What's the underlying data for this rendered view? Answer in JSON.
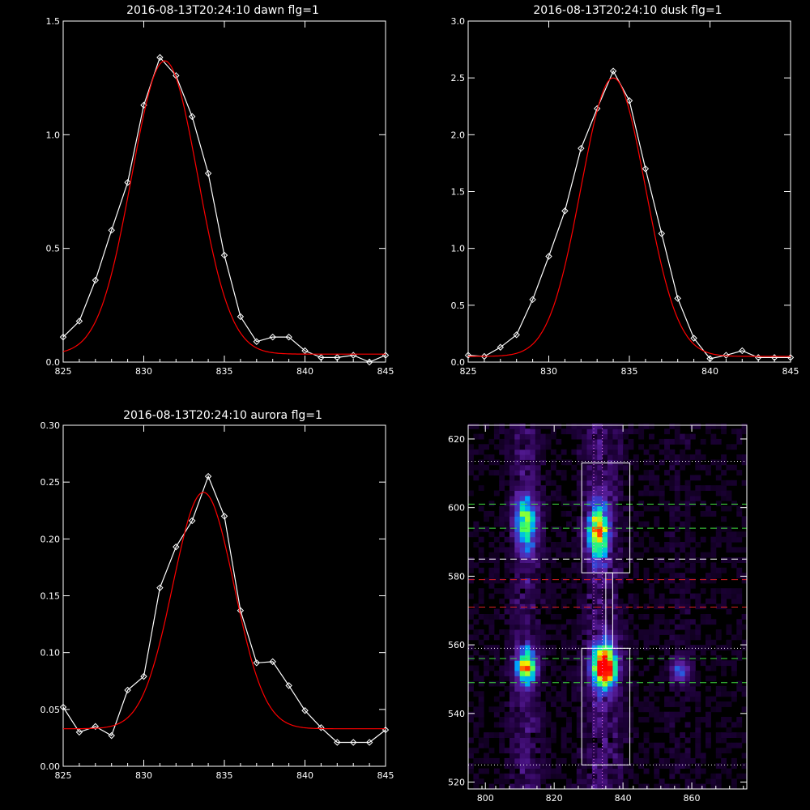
{
  "chart_data": [
    {
      "type": "line",
      "title": "2016-08-13T20:24:10 dawn flg=1",
      "xlabel": "",
      "ylabel": "",
      "xlim": [
        825,
        845
      ],
      "ylim": [
        0,
        1.5
      ],
      "xticks": [
        825,
        830,
        835,
        840,
        845
      ],
      "xtick_labels": [
        "825",
        "830",
        "835",
        "840",
        "845"
      ],
      "yticks": [
        0,
        0.5,
        1.0,
        1.5
      ],
      "ytick_labels": [
        "0.0",
        "0.5",
        "1.0",
        "1.5"
      ],
      "series": [
        {
          "color": "#ffffff",
          "marker": "diamond",
          "x": [
            825,
            826,
            827,
            828,
            829,
            830,
            831,
            832,
            833,
            834,
            835,
            836,
            837,
            838,
            839,
            840,
            841,
            842,
            843,
            844,
            845
          ],
          "y": [
            0.11,
            0.18,
            0.36,
            0.58,
            0.79,
            1.13,
            1.34,
            1.26,
            1.08,
            0.83,
            0.47,
            0.2,
            0.09,
            0.11,
            0.11,
            0.05,
            0.02,
            0.02,
            0.03,
            0.0,
            0.03
          ]
        },
        {
          "color": "#ff0000",
          "marker": "none",
          "fit": "gaussian",
          "center": 831.3,
          "amplitude": 1.29,
          "sigma": 2.05,
          "offset": 0.035
        }
      ]
    },
    {
      "type": "line",
      "title": "2016-08-13T20:24:10 dusk flg=1",
      "xlabel": "",
      "ylabel": "",
      "xlim": [
        825,
        845
      ],
      "ylim": [
        0,
        3.0
      ],
      "xticks": [
        825,
        830,
        835,
        840,
        845
      ],
      "xtick_labels": [
        "825",
        "830",
        "835",
        "840",
        "845"
      ],
      "yticks": [
        0,
        0.5,
        1.0,
        1.5,
        2.0,
        2.5,
        3.0
      ],
      "ytick_labels": [
        "0.0",
        "0.5",
        "1.0",
        "1.5",
        "2.0",
        "2.5",
        "3.0"
      ],
      "series": [
        {
          "color": "#ffffff",
          "marker": "diamond",
          "x": [
            825,
            826,
            827,
            828,
            829,
            830,
            831,
            832,
            833,
            834,
            835,
            836,
            837,
            838,
            839,
            840,
            841,
            842,
            843,
            844,
            845
          ],
          "y": [
            0.06,
            0.05,
            0.13,
            0.24,
            0.55,
            0.93,
            1.33,
            1.88,
            2.23,
            2.56,
            2.3,
            1.7,
            1.13,
            0.56,
            0.21,
            0.03,
            0.06,
            0.1,
            0.04,
            0.04,
            0.04
          ]
        },
        {
          "color": "#ff0000",
          "marker": "none",
          "fit": "gaussian",
          "center": 834.0,
          "amplitude": 2.45,
          "sigma": 2.0,
          "offset": 0.05
        }
      ]
    },
    {
      "type": "line",
      "title": "2016-08-13T20:24:10 aurora flg=1",
      "xlabel": "",
      "ylabel": "",
      "xlim": [
        825,
        845
      ],
      "ylim": [
        0,
        0.3
      ],
      "xticks": [
        825,
        830,
        835,
        840,
        845
      ],
      "xtick_labels": [
        "825",
        "830",
        "835",
        "840",
        "845"
      ],
      "yticks": [
        0,
        0.05,
        0.1,
        0.15,
        0.2,
        0.25,
        0.3
      ],
      "ytick_labels": [
        "0.00",
        "0.05",
        "0.10",
        "0.15",
        "0.20",
        "0.25",
        "0.30"
      ],
      "series": [
        {
          "color": "#ffffff",
          "marker": "diamond",
          "x": [
            825,
            826,
            827,
            828,
            829,
            830,
            831,
            832,
            833,
            834,
            835,
            836,
            837,
            838,
            839,
            840,
            841,
            842,
            843,
            844,
            845
          ],
          "y": [
            0.052,
            0.03,
            0.035,
            0.027,
            0.067,
            0.079,
            0.157,
            0.193,
            0.216,
            0.255,
            0.22,
            0.137,
            0.091,
            0.092,
            0.071,
            0.049,
            0.034,
            0.021,
            0.021,
            0.021,
            0.032
          ]
        },
        {
          "color": "#ff0000",
          "marker": "none",
          "fit": "gaussian",
          "center": 833.7,
          "amplitude": 0.208,
          "sigma": 1.9,
          "offset": 0.033
        }
      ]
    },
    {
      "type": "heatmap",
      "title": "",
      "xlabel": "",
      "ylabel": "",
      "xlim": [
        795,
        876
      ],
      "ylim": [
        518,
        624
      ],
      "xticks": [
        800,
        820,
        840,
        860
      ],
      "xtick_labels": [
        "800",
        "820",
        "840",
        "860"
      ],
      "yticks": [
        520,
        540,
        560,
        580,
        600,
        620
      ],
      "ytick_labels": [
        "520",
        "540",
        "560",
        "580",
        "600",
        "620"
      ],
      "colormap": [
        "#000000",
        "#1a0033",
        "#3a0a6a",
        "#5a20a0",
        "#3a40d0",
        "#00a0ff",
        "#00e0c0",
        "#40ff60",
        "#f0ff00",
        "#ff6000",
        "#ff0000"
      ],
      "blobs": [
        {
          "x": 811,
          "y": 595,
          "sx": 2.2,
          "sy": 5.5,
          "amp": 0.6
        },
        {
          "x": 832,
          "y": 592,
          "sx": 2.2,
          "sy": 5.5,
          "amp": 0.7
        },
        {
          "x": 811,
          "y": 553,
          "sx": 2.0,
          "sy": 3.5,
          "amp": 0.75
        },
        {
          "x": 834,
          "y": 553,
          "sx": 2.5,
          "sy": 4.5,
          "amp": 1.0
        },
        {
          "x": 856,
          "y": 552,
          "sx": 2.0,
          "sy": 2.5,
          "amp": 0.35
        }
      ],
      "boxes": [
        {
          "x0": 828,
          "x1": 842,
          "y0": 581,
          "y1": 613,
          "color": "#ffffff"
        },
        {
          "x0": 828,
          "x1": 842,
          "y0": 525,
          "y1": 559,
          "color": "#ffffff"
        },
        {
          "x0": 835,
          "x1": 837,
          "y0": 559,
          "y1": 581,
          "color": "#ffffff"
        }
      ],
      "hlines": [
        {
          "y": 613.5,
          "color": "#ffffff",
          "style": "dotted"
        },
        {
          "y": 601,
          "color": "#40e040",
          "style": "dashed"
        },
        {
          "y": 594,
          "color": "#40e040",
          "style": "dashed"
        },
        {
          "y": 585,
          "color": "#ffffff",
          "style": "dashed"
        },
        {
          "y": 579,
          "color": "#e02020",
          "style": "dashed"
        },
        {
          "y": 571,
          "color": "#e02020",
          "style": "dashed"
        },
        {
          "y": 559,
          "color": "#ffffff",
          "style": "dotted"
        },
        {
          "y": 556,
          "color": "#40e040",
          "style": "dashed"
        },
        {
          "y": 549,
          "color": "#40e040",
          "style": "dashed"
        },
        {
          "y": 525,
          "color": "#ffffff",
          "style": "dotted"
        }
      ],
      "vlines": [
        {
          "x": 831.5,
          "color": "#ff80ff",
          "style": "dotted"
        },
        {
          "x": 834.0,
          "color": "#ff80ff",
          "style": "dotted"
        }
      ]
    }
  ]
}
